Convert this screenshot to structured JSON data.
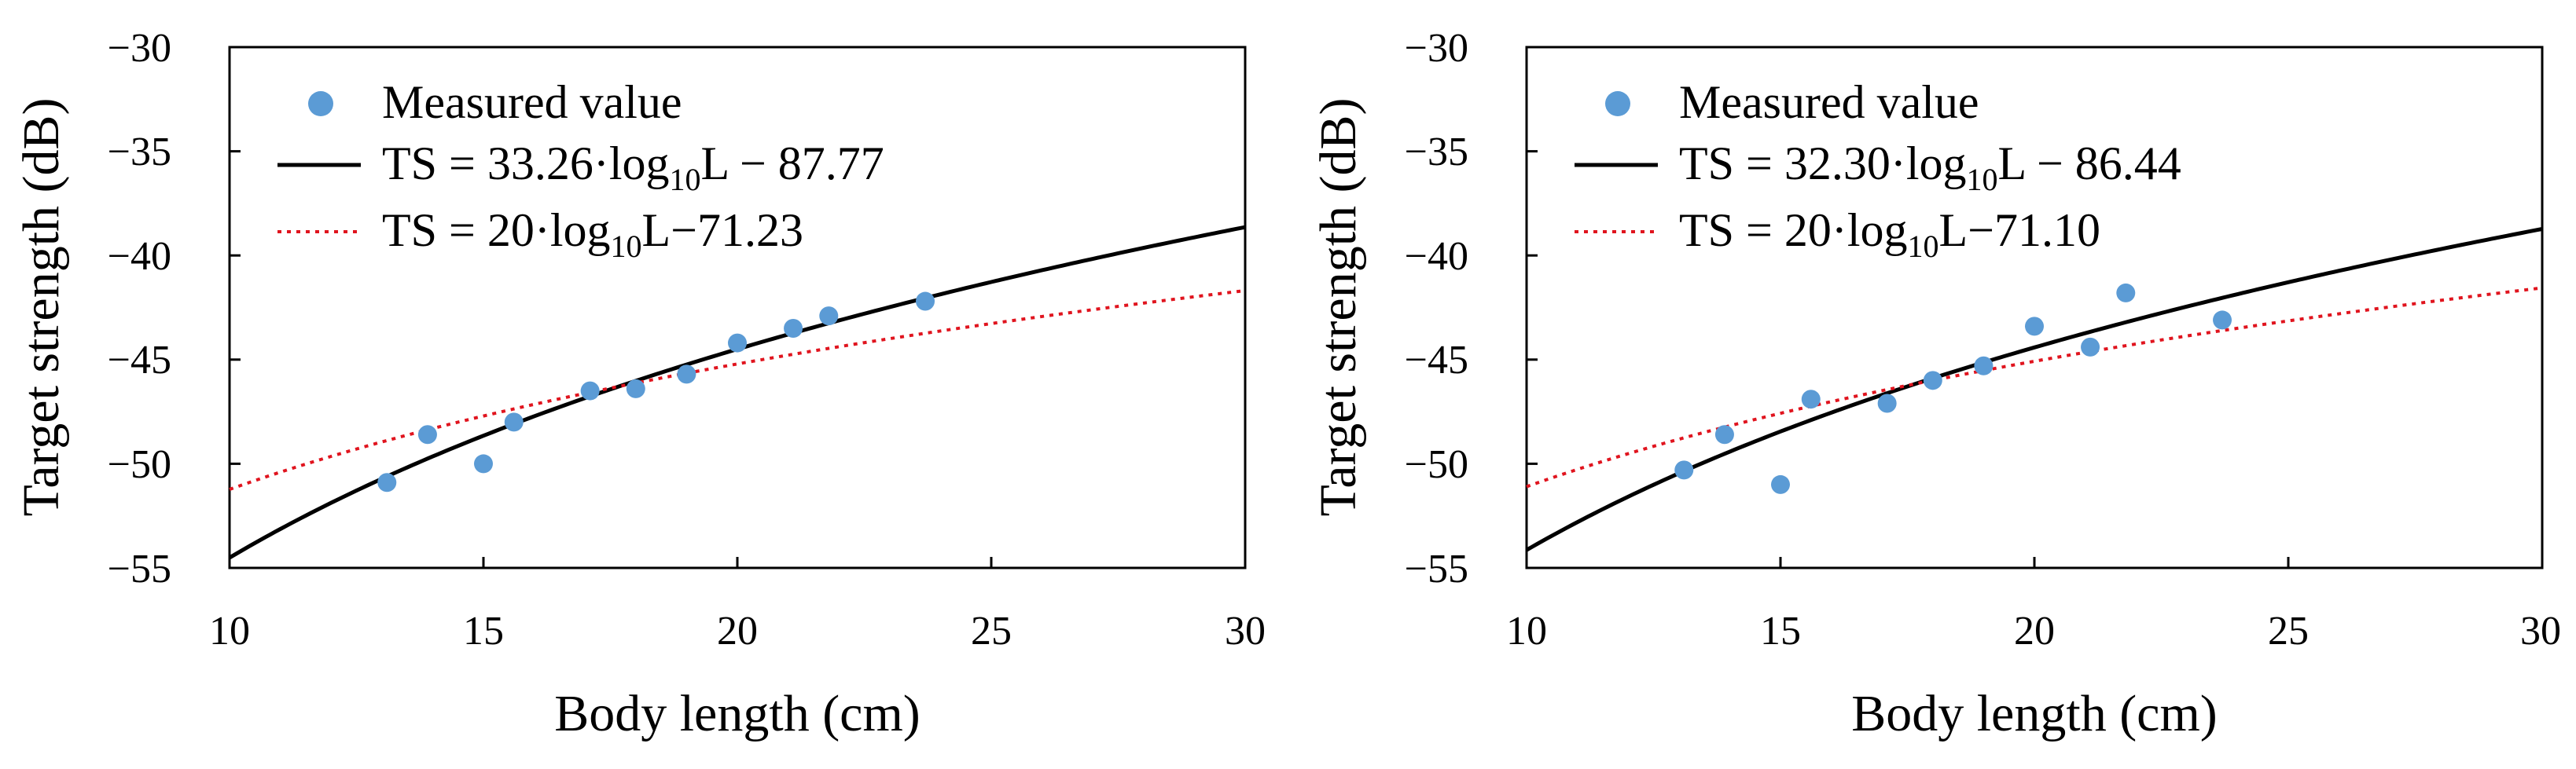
{
  "colors": {
    "measured": "#5b9bd5",
    "fit": "#000000",
    "reference": "#e0141e",
    "axes": "#000000"
  },
  "chart_data": [
    {
      "type": "scatter",
      "xlabel": "Body length (cm)",
      "ylabel": "Target strength (dB)",
      "xlim": [
        10,
        30
      ],
      "ylim": [
        -55,
        -30
      ],
      "xticks": [
        "10",
        "15",
        "20",
        "25",
        "30"
      ],
      "yticks": [
        "−30",
        "−35",
        "−40",
        "−45",
        "−50",
        "−55"
      ],
      "legend_position": "top-left",
      "series": [
        {
          "name": "Measured value",
          "kind": "points",
          "x": [
            13.1,
            13.9,
            15.0,
            15.6,
            17.1,
            18.0,
            19.0,
            20.0,
            21.1,
            21.8,
            23.7
          ],
          "y": [
            -50.9,
            -48.6,
            -50.0,
            -48.0,
            -46.5,
            -46.4,
            -45.7,
            -44.2,
            -43.5,
            -42.9,
            -42.2
          ]
        },
        {
          "name": "TS = 33.26·log10L − 87.77",
          "kind": "fit",
          "slope": 33.26,
          "intercept": -87.77,
          "label_main": "TS = 33.26·log",
          "label_sub": "10",
          "label_tail": "L − 87.77"
        },
        {
          "name": "TS = 20·log10L−71.23",
          "kind": "reference",
          "slope": 20,
          "intercept": -71.23,
          "label_main": "TS = 20·log",
          "label_sub": "10",
          "label_tail": "L−71.23"
        }
      ]
    },
    {
      "type": "scatter",
      "xlabel": "Body length (cm)",
      "ylabel": "Target strength (dB)",
      "xlim": [
        10,
        30
      ],
      "ylim": [
        -55,
        -30
      ],
      "xticks": [
        "10",
        "15",
        "20",
        "25",
        "30"
      ],
      "yticks": [
        "−30",
        "−35",
        "−40",
        "−45",
        "−50",
        "−55"
      ],
      "legend_position": "top-left",
      "series": [
        {
          "name": "Measured value",
          "kind": "points",
          "x": [
            13.1,
            13.9,
            15.0,
            15.6,
            17.1,
            18.0,
            19.0,
            20.0,
            21.1,
            21.8,
            23.7
          ],
          "y": [
            -50.3,
            -48.6,
            -51.0,
            -46.9,
            -47.1,
            -46.0,
            -45.3,
            -43.4,
            -44.4,
            -41.8,
            -43.1
          ]
        },
        {
          "name": "TS = 32.30·log10L − 86.44",
          "kind": "fit",
          "slope": 32.3,
          "intercept": -86.44,
          "label_main": "TS = 32.30·log",
          "label_sub": "10",
          "label_tail": "L − 86.44"
        },
        {
          "name": "TS = 20·log10L−71.10",
          "kind": "reference",
          "slope": 20,
          "intercept": -71.1,
          "label_main": "TS = 20·log",
          "label_sub": "10",
          "label_tail": "L−71.10"
        }
      ]
    }
  ]
}
